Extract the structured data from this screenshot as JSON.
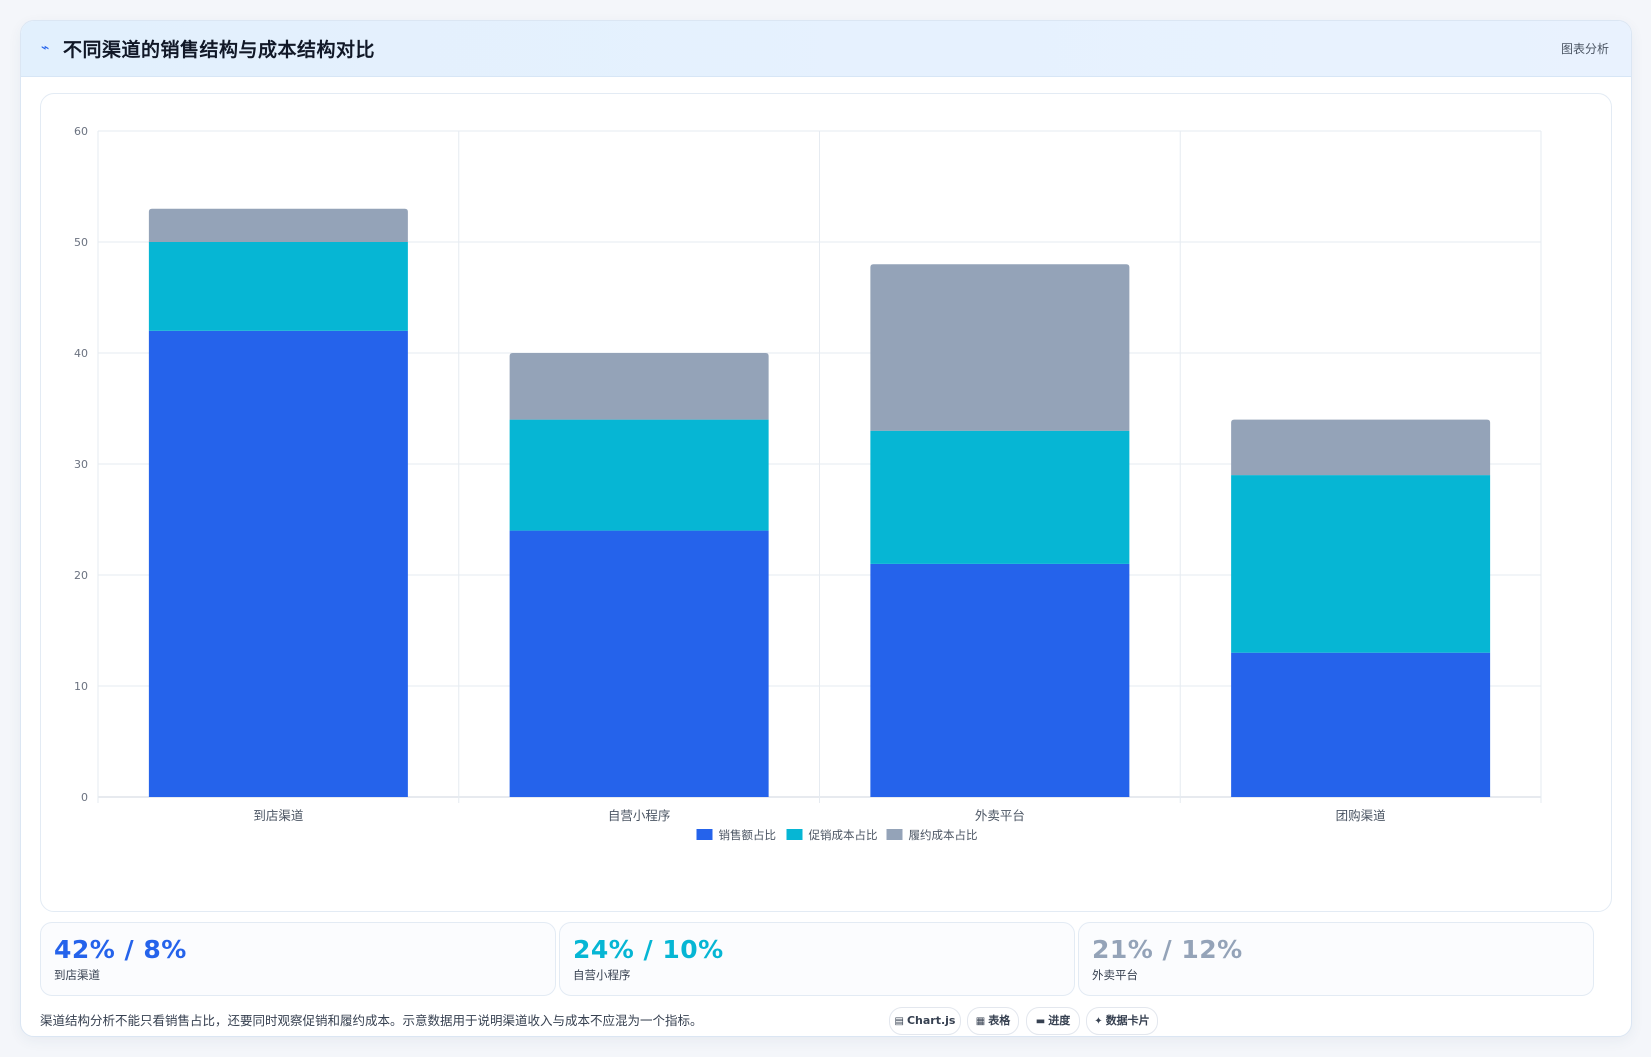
{
  "header": {
    "icon": "trend-line-icon",
    "title": "不同渠道的销售结构与成本结构对比",
    "tag": "图表分析"
  },
  "chart_data": {
    "type": "bar",
    "stacked": true,
    "categories": [
      "到店渠道",
      "自营小程序",
      "外卖平台",
      "团购渠道"
    ],
    "series": [
      {
        "name": "销售额占比",
        "values": [
          42,
          24,
          21,
          13
        ],
        "color": "#2563eb"
      },
      {
        "name": "促销成本占比",
        "values": [
          8,
          10,
          12,
          16
        ],
        "color": "#06b6d4"
      },
      {
        "name": "履约成本占比",
        "values": [
          3,
          6,
          15,
          5
        ],
        "color": "#94a3b8"
      }
    ],
    "ylim": [
      0,
      60
    ],
    "yticks": [
      0,
      10,
      20,
      30,
      40,
      50,
      60
    ],
    "grid": true,
    "legend_position": "bottom"
  },
  "stats": [
    {
      "value": "42% / 8%",
      "label": "到店渠道",
      "color": "#2563eb"
    },
    {
      "value": "24% / 10%",
      "label": "自营小程序",
      "color": "#06b6d4"
    },
    {
      "value": "21% / 12%",
      "label": "外卖平台",
      "color": "#94a3b8"
    }
  ],
  "footer": {
    "note": "渠道结构分析不能只看销售占比，还要同时观察促销和履约成本。示意数据用于说明渠道收入与成本不应混为一个指标。",
    "tags": [
      {
        "icon": "chart-icon",
        "glyph": "▤",
        "label": "Chart.js"
      },
      {
        "icon": "table-icon",
        "glyph": "▦",
        "label": "表格"
      },
      {
        "icon": "progress-icon",
        "glyph": "▬",
        "label": "进度"
      },
      {
        "icon": "sparkle-icon",
        "glyph": "✦",
        "label": "数据卡片"
      }
    ]
  }
}
